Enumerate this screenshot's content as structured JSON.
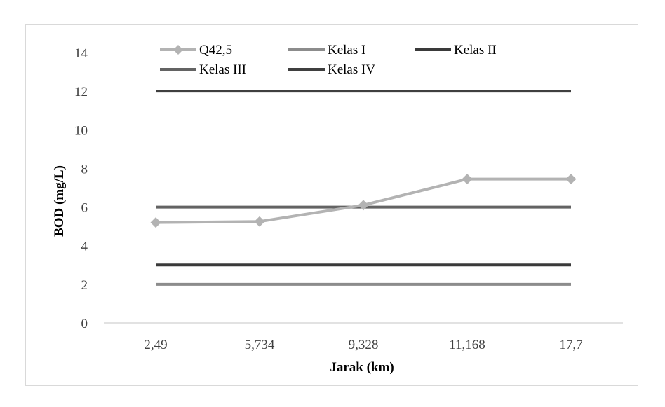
{
  "chart_data": {
    "type": "line",
    "title": "",
    "xlabel": "Jarak (km)",
    "ylabel": "BOD (mg/L)",
    "categories": [
      "2,49",
      "5,734",
      "9,328",
      "11,168",
      "17,7"
    ],
    "ylim": [
      0,
      14
    ],
    "yticks": [
      0,
      2,
      4,
      6,
      8,
      10,
      12,
      14
    ],
    "grid": false,
    "legend_position": "top",
    "series": [
      {
        "name": "Q42,5",
        "values": [
          5.2,
          5.25,
          6.1,
          7.45,
          7.45
        ],
        "color": "#b3b3b3",
        "marker": "diamond"
      },
      {
        "name": "Kelas I",
        "values": [
          2,
          2,
          2,
          2,
          2
        ],
        "color": "#8c8c8c",
        "marker": "none"
      },
      {
        "name": "Kelas II",
        "values": [
          3,
          3,
          3,
          3,
          3
        ],
        "color": "#3a3a3a",
        "marker": "none"
      },
      {
        "name": "Kelas III",
        "values": [
          6,
          6,
          6,
          6,
          6
        ],
        "color": "#636363",
        "marker": "none"
      },
      {
        "name": "Kelas IV",
        "values": [
          12,
          12,
          12,
          12,
          12
        ],
        "color": "#3f3f3f",
        "marker": "none"
      }
    ]
  }
}
